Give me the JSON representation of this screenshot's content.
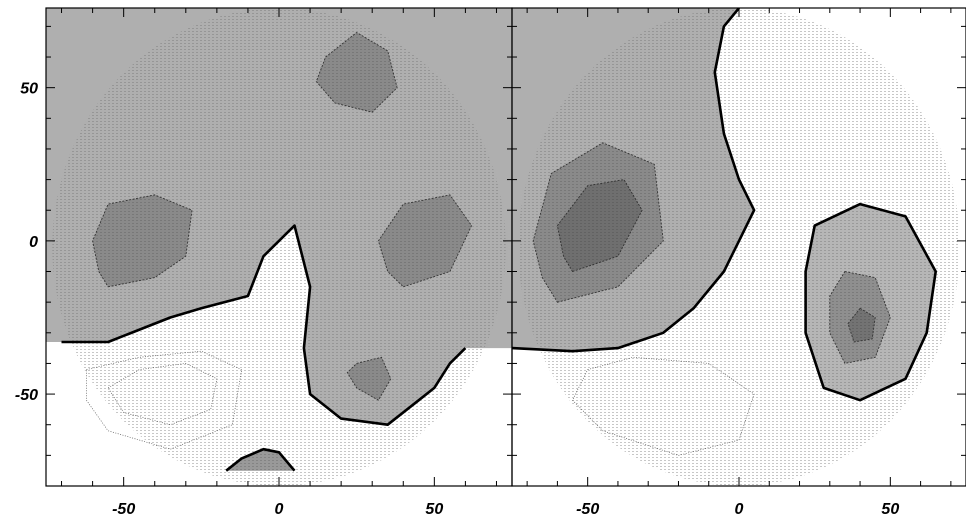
{
  "chart_data": [
    {
      "type": "heatmap",
      "panel": "left",
      "title": "",
      "xlabel": "",
      "ylabel": "",
      "xlim": [
        -75,
        75
      ],
      "ylim": [
        -80,
        76
      ],
      "x_ticks": [
        -50,
        0,
        50
      ],
      "y_ticks": [
        50,
        0,
        -50
      ],
      "x_tick_labels": [
        "-50",
        "0",
        "50"
      ],
      "y_tick_labels": [
        "50",
        "0",
        "-50"
      ],
      "colormap": "grayscale (darker = higher), contoured",
      "grid": false,
      "bold_contour": [
        [
          -70,
          -33
        ],
        [
          -55,
          -33
        ],
        [
          -35,
          -25
        ],
        [
          -25,
          -22
        ],
        [
          -10,
          -18
        ],
        [
          -5,
          -5
        ],
        [
          5,
          5
        ],
        [
          10,
          -15
        ],
        [
          8,
          -35
        ],
        [
          10,
          -50
        ],
        [
          20,
          -58
        ],
        [
          35,
          -60
        ],
        [
          45,
          -52
        ],
        [
          50,
          -48
        ],
        [
          55,
          -40
        ],
        [
          60,
          -35
        ]
      ],
      "bottom_feature_contour": [
        [
          -17,
          -75
        ],
        [
          -12,
          -71
        ],
        [
          -5,
          -68
        ],
        [
          0,
          -69
        ],
        [
          5,
          -75
        ]
      ],
      "inner_contours": [
        [
          [
            -55,
            -15
          ],
          [
            -40,
            -12
          ],
          [
            -30,
            -5
          ],
          [
            -28,
            10
          ],
          [
            -40,
            15
          ],
          [
            -55,
            12
          ],
          [
            -60,
            0
          ],
          [
            -58,
            -10
          ],
          [
            -55,
            -15
          ]
        ],
        [
          [
            15,
            60
          ],
          [
            25,
            68
          ],
          [
            35,
            62
          ],
          [
            38,
            50
          ],
          [
            30,
            42
          ],
          [
            18,
            45
          ],
          [
            12,
            52
          ],
          [
            15,
            60
          ]
        ],
        [
          [
            40,
            -15
          ],
          [
            55,
            -10
          ],
          [
            62,
            5
          ],
          [
            55,
            15
          ],
          [
            40,
            12
          ],
          [
            32,
            0
          ],
          [
            35,
            -10
          ],
          [
            40,
            -15
          ]
        ],
        [
          [
            25,
            -40
          ],
          [
            33,
            -38
          ],
          [
            36,
            -45
          ],
          [
            32,
            -52
          ],
          [
            25,
            -48
          ],
          [
            22,
            -43
          ],
          [
            25,
            -40
          ]
        ]
      ],
      "lower_contours": [
        [
          [
            -55,
            -48
          ],
          [
            -45,
            -42
          ],
          [
            -30,
            -40
          ],
          [
            -20,
            -45
          ],
          [
            -22,
            -55
          ],
          [
            -35,
            -60
          ],
          [
            -50,
            -56
          ],
          [
            -55,
            -48
          ]
        ],
        [
          [
            -62,
            -42
          ],
          [
            -45,
            -38
          ],
          [
            -25,
            -36
          ],
          [
            -12,
            -42
          ],
          [
            -15,
            -60
          ],
          [
            -35,
            -68
          ],
          [
            -55,
            -62
          ],
          [
            -62,
            -52
          ],
          [
            -62,
            -42
          ]
        ]
      ]
    },
    {
      "type": "heatmap",
      "panel": "right",
      "title": "",
      "xlabel": "",
      "ylabel": "",
      "xlim": [
        -75,
        75
      ],
      "ylim": [
        -80,
        76
      ],
      "x_ticks": [
        -50,
        0,
        50
      ],
      "y_ticks": [
        50,
        0,
        -50
      ],
      "x_tick_labels": [
        "-50",
        "0",
        "50"
      ],
      "y_tick_labels": [],
      "colormap": "grayscale (darker = higher), contoured",
      "grid": false,
      "bold_contour": [
        [
          -75,
          -35
        ],
        [
          -55,
          -36
        ],
        [
          -40,
          -35
        ],
        [
          -25,
          -30
        ],
        [
          -15,
          -22
        ],
        [
          -5,
          -10
        ],
        [
          0,
          0
        ],
        [
          5,
          10
        ],
        [
          0,
          20
        ],
        [
          -5,
          35
        ],
        [
          -8,
          55
        ],
        [
          -5,
          70
        ],
        [
          0,
          76
        ]
      ],
      "right_bold_loop": [
        [
          25,
          5
        ],
        [
          40,
          12
        ],
        [
          55,
          8
        ],
        [
          65,
          -10
        ],
        [
          62,
          -30
        ],
        [
          55,
          -45
        ],
        [
          40,
          -52
        ],
        [
          28,
          -48
        ],
        [
          22,
          -30
        ],
        [
          22,
          -10
        ],
        [
          25,
          5
        ]
      ],
      "inner_contours": [
        [
          [
            -55,
            -10
          ],
          [
            -40,
            -5
          ],
          [
            -32,
            10
          ],
          [
            -38,
            20
          ],
          [
            -50,
            18
          ],
          [
            -60,
            5
          ],
          [
            -58,
            -5
          ],
          [
            -55,
            -10
          ]
        ],
        [
          [
            -60,
            -20
          ],
          [
            -40,
            -15
          ],
          [
            -25,
            0
          ],
          [
            -28,
            25
          ],
          [
            -45,
            32
          ],
          [
            -62,
            22
          ],
          [
            -68,
            0
          ],
          [
            -65,
            -12
          ],
          [
            -60,
            -20
          ]
        ],
        [
          [
            35,
            -10
          ],
          [
            45,
            -12
          ],
          [
            50,
            -25
          ],
          [
            45,
            -38
          ],
          [
            35,
            -40
          ],
          [
            30,
            -30
          ],
          [
            30,
            -18
          ],
          [
            35,
            -10
          ]
        ],
        [
          [
            40,
            -22
          ],
          [
            45,
            -25
          ],
          [
            44,
            -32
          ],
          [
            38,
            -33
          ],
          [
            36,
            -27
          ],
          [
            40,
            -22
          ]
        ]
      ],
      "lower_contours": [
        [
          [
            -50,
            -42
          ],
          [
            -35,
            -38
          ],
          [
            -10,
            -40
          ],
          [
            5,
            -50
          ],
          [
            0,
            -65
          ],
          [
            -20,
            -70
          ],
          [
            -45,
            -62
          ],
          [
            -55,
            -52
          ],
          [
            -50,
            -42
          ]
        ]
      ]
    }
  ]
}
